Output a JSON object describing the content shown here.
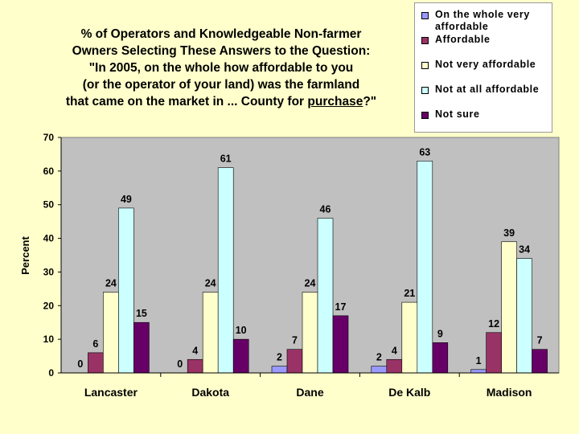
{
  "title_lines": [
    "% of Operators and Knowledgeable Non-farmer",
    "Owners Selecting These Answers to the Question:",
    "\"In 2005, on the whole how affordable to you",
    "(or the operator of your land) was the farmland"
  ],
  "title_last_pre": "that came on the market in ... County for ",
  "title_last_underlined": "purchase",
  "title_last_post": "?\"",
  "colors": {
    "background": "#FFFFCC",
    "plot_area": "#C0C0C0",
    "series": [
      "#9999FF",
      "#993366",
      "#FFFFCC",
      "#CCFFFF",
      "#660066"
    ]
  },
  "chart_data": {
    "type": "bar",
    "categories": [
      "Lancaster",
      "Dakota",
      "Dane",
      "De Kalb",
      "Madison"
    ],
    "series": [
      {
        "name": "On the whole very affordable",
        "values": [
          0,
          0,
          2,
          2,
          1
        ]
      },
      {
        "name": "Affordable",
        "values": [
          6,
          4,
          7,
          4,
          12
        ]
      },
      {
        "name": "Not very affordable",
        "values": [
          24,
          24,
          24,
          21,
          39
        ]
      },
      {
        "name": "Not at all affordable",
        "values": [
          49,
          61,
          46,
          63,
          34
        ]
      },
      {
        "name": "Not sure",
        "values": [
          15,
          10,
          17,
          9,
          7
        ]
      }
    ],
    "ylabel": "Percent",
    "xlabel": "",
    "ylim": [
      0,
      70
    ],
    "yticks": [
      0,
      10,
      20,
      30,
      40,
      50,
      60,
      70
    ],
    "grid": false,
    "legend": "top-right"
  }
}
